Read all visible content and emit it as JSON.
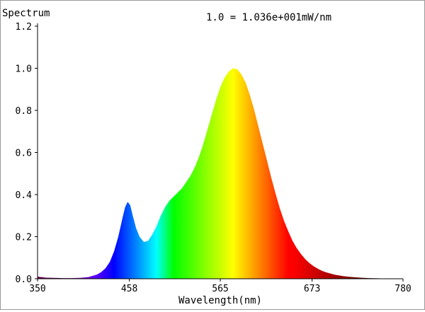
{
  "chart_data": {
    "type": "area",
    "title": "Spectrum",
    "scale_note": "1.0 = 1.036e+001mW/nm",
    "xlabel": "Wavelength(nm)",
    "ylabel": "",
    "xlim": [
      350,
      780
    ],
    "ylim": [
      0,
      1.2
    ],
    "x_ticks": [
      "350",
      "458",
      "565",
      "673",
      "780"
    ],
    "y_ticks": [
      "0.0",
      "0.2",
      "0.4",
      "0.6",
      "0.8",
      "1.0",
      "1.2"
    ],
    "grid": false,
    "legend": "none",
    "fill": "wavelength-color gradient (visible spectrum)",
    "series": [
      {
        "x": [
          350,
          360,
          370,
          380,
          390,
          400,
          410,
          420,
          425,
          430,
          435,
          440,
          445,
          450,
          453,
          456,
          459,
          462,
          466,
          470,
          475,
          480,
          485,
          490,
          495,
          500,
          505,
          510,
          515,
          520,
          525,
          530,
          535,
          540,
          545,
          550,
          555,
          560,
          565,
          570,
          575,
          580,
          585,
          590,
          595,
          600,
          605,
          610,
          615,
          620,
          625,
          630,
          635,
          640,
          645,
          650,
          655,
          660,
          665,
          670,
          675,
          680,
          685,
          690,
          700,
          710,
          720,
          730,
          740,
          750,
          760,
          770,
          780
        ],
        "values": [
          0.01,
          0.005,
          0.004,
          0.003,
          0.003,
          0.004,
          0.008,
          0.02,
          0.032,
          0.05,
          0.08,
          0.13,
          0.2,
          0.29,
          0.34,
          0.365,
          0.35,
          0.3,
          0.24,
          0.2,
          0.175,
          0.18,
          0.21,
          0.25,
          0.3,
          0.34,
          0.37,
          0.39,
          0.41,
          0.43,
          0.46,
          0.49,
          0.53,
          0.58,
          0.64,
          0.71,
          0.78,
          0.85,
          0.91,
          0.955,
          0.985,
          1.0,
          0.995,
          0.97,
          0.93,
          0.87,
          0.8,
          0.72,
          0.64,
          0.56,
          0.48,
          0.405,
          0.335,
          0.275,
          0.225,
          0.18,
          0.145,
          0.117,
          0.093,
          0.074,
          0.059,
          0.047,
          0.037,
          0.03,
          0.019,
          0.012,
          0.008,
          0.005,
          0.003,
          0.002,
          0.001,
          0.001,
          0.0
        ]
      }
    ]
  }
}
